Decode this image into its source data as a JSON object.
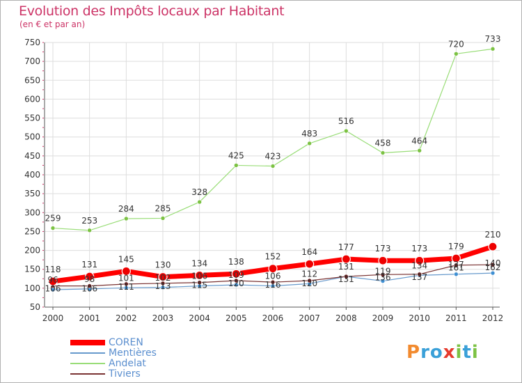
{
  "header": {
    "title": "Evolution des Impôts locaux par Habitant",
    "subtitle": "(en € et par an)"
  },
  "colors": {
    "title": "#cc3366",
    "legend_text": "#5b8fcf",
    "grid": "#dddddd"
  },
  "logo": {
    "text": "Proxiti",
    "letters": [
      {
        "char": "P",
        "color": "#f28a2e"
      },
      {
        "char": "r",
        "color": "#3aa0d8"
      },
      {
        "char": "o",
        "color": "#3aa0d8"
      },
      {
        "char": "x",
        "color": "#e63b2e"
      },
      {
        "char": "i",
        "color": "#7cc243"
      },
      {
        "char": "t",
        "color": "#3aa0d8"
      },
      {
        "char": "i",
        "color": "#7cc243"
      }
    ]
  },
  "chart_data": {
    "type": "line",
    "title": "Evolution des Impôts locaux par Habitant",
    "subtitle": "(en € et par an)",
    "x": [
      "2000",
      "2001",
      "2002",
      "2003",
      "2004",
      "2005",
      "2006",
      "2007",
      "2008",
      "2009",
      "2010",
      "2011",
      "2012"
    ],
    "yticks": [
      50,
      100,
      150,
      200,
      250,
      300,
      350,
      400,
      450,
      500,
      550,
      600,
      650,
      700,
      750
    ],
    "ylim": [
      50,
      750
    ],
    "grid": true,
    "legend_position": "bottom-left",
    "series": [
      {
        "name": "COREN",
        "color": "#ff0000",
        "marker_color": "#ee0000",
        "width": 7,
        "marker_r": 6,
        "label_offset": -13,
        "values": [
          118,
          131,
          145,
          130,
          134,
          138,
          152,
          164,
          177,
          173,
          173,
          179,
          210
        ]
      },
      {
        "name": "Mentières",
        "color": "#6699cc",
        "marker_color": "#3f8fd2",
        "width": 1.2,
        "marker_r": 3,
        "label_offset": -10,
        "values": [
          96,
          98,
          101,
          102,
          106,
          109,
          106,
          112,
          131,
          119,
          134,
          137,
          140
        ]
      },
      {
        "name": "Andelat",
        "color": "#99dd77",
        "marker_color": "#7cc243",
        "width": 1.2,
        "marker_r": 3,
        "label_offset": -10,
        "values": [
          259,
          253,
          284,
          285,
          328,
          425,
          423,
          483,
          516,
          458,
          464,
          720,
          733
        ]
      },
      {
        "name": "Tiviers",
        "color": "#7a3333",
        "marker_color": "#6a1c1c",
        "width": 1.2,
        "marker_r": 3,
        "label_offset": 8,
        "values": [
          106,
          106,
          111,
          113,
          115,
          120,
          116,
          120,
          131,
          136,
          137,
          161,
          162
        ]
      }
    ]
  }
}
